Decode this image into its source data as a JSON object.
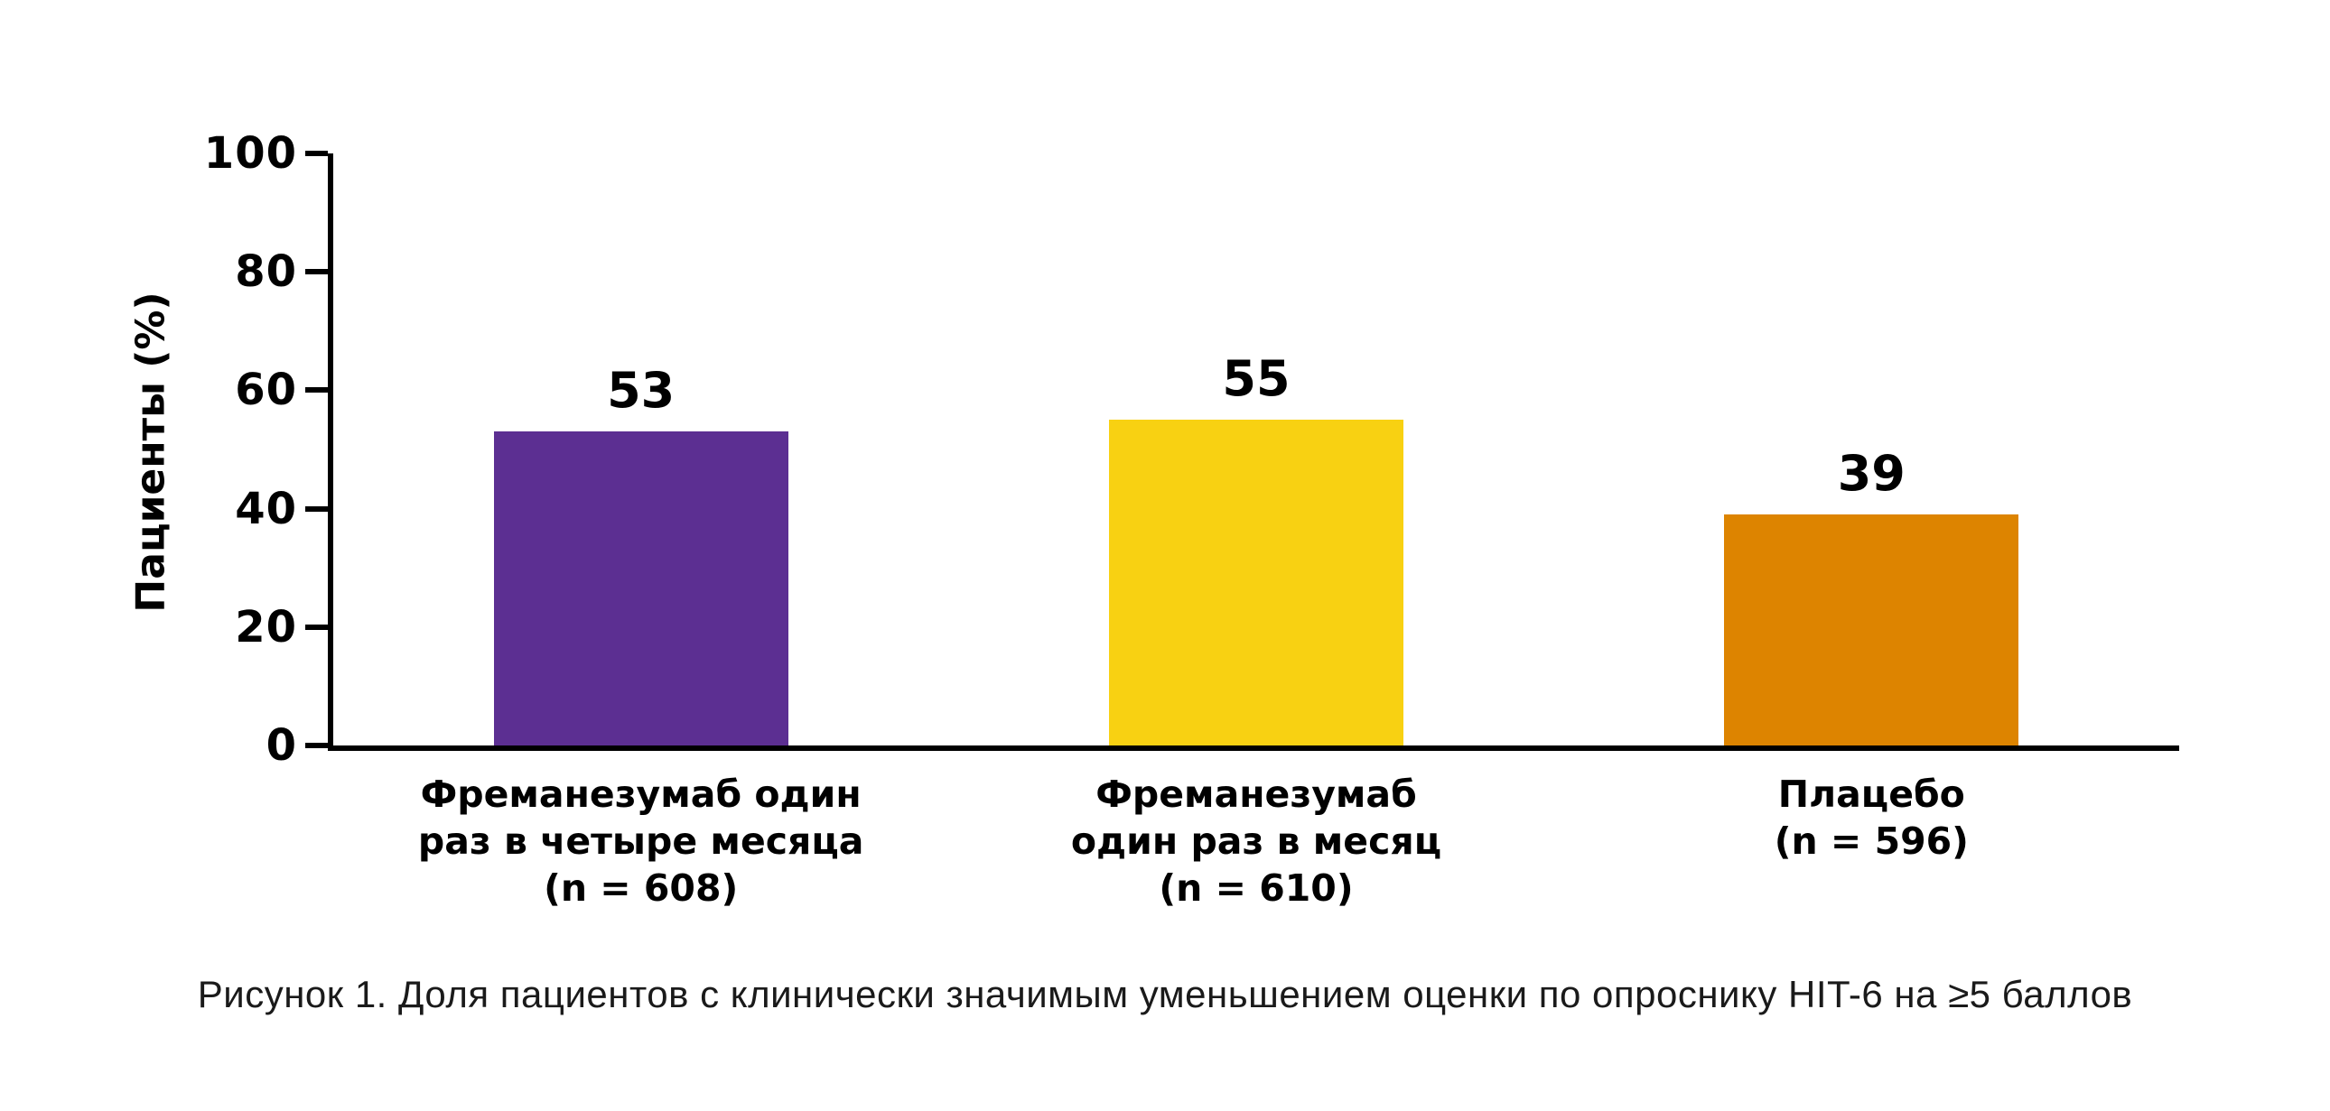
{
  "figure": {
    "background": "#ffffff",
    "caption": "Рисунок 1. Доля пациентов с клинически значимым уменьшением оценки по опроснику HIT-6 на ≥5 баллов"
  },
  "chart_data": {
    "type": "bar",
    "title": "",
    "xlabel": "",
    "ylabel": "Пациенты (%)",
    "ylim": [
      0,
      100
    ],
    "yticks": [
      0,
      20,
      40,
      60,
      80,
      100
    ],
    "grid": false,
    "legend_position": "none",
    "categories": [
      "Фреманезумаб один раз в четыре месяца (n = 608)",
      "Фреманезумаб один раз в месяц (n = 610)",
      "Плацебо (n = 596)"
    ],
    "category_label_lines": [
      [
        "Фреманезумаб один",
        "раз в четыре месяца",
        "(n = 608)"
      ],
      [
        "Фреманезумаб",
        "один раз в месяц",
        "(n = 610)"
      ],
      [
        "Плацебо",
        "(n = 596)"
      ]
    ],
    "values": [
      53,
      55,
      39
    ],
    "value_labels": [
      "53",
      "55",
      "39"
    ],
    "bar_colors": [
      "#5c2f92",
      "#f8d112",
      "#dd8400"
    ],
    "axis_color": "#000000",
    "text_color": "#000000"
  }
}
